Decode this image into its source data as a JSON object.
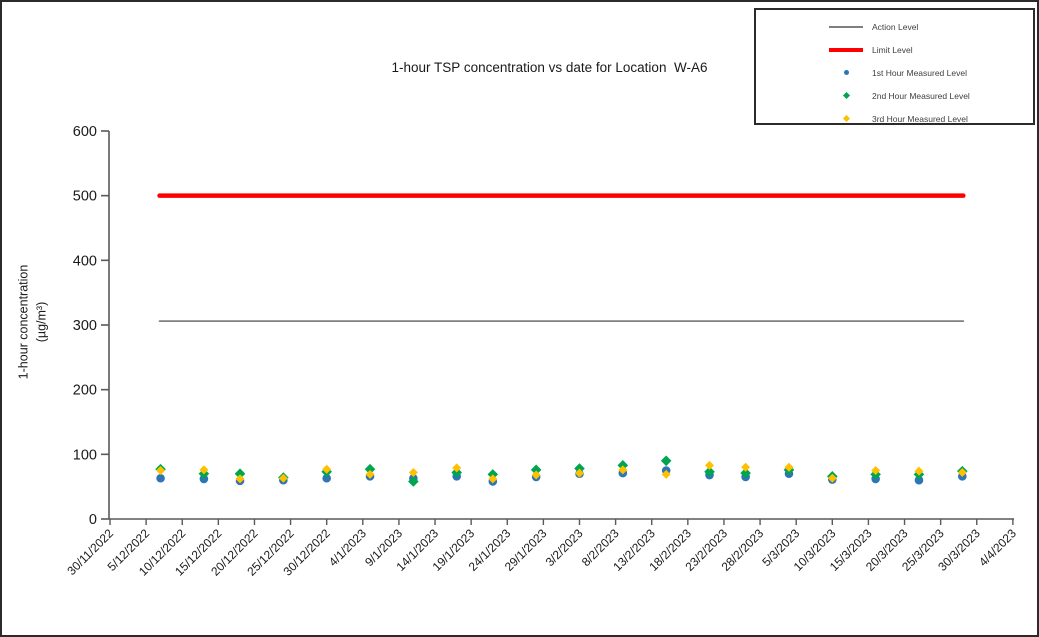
{
  "chart_data": {
    "type": "scatter",
    "title": "1-hour TSP concentration vs date for Location  W-A6",
    "ylabel_line1": "1-hour concentration",
    "ylabel_line2": "(µg/m³)",
    "xlabel": "",
    "ylim": [
      0,
      600
    ],
    "y_ticks": [
      0,
      100,
      200,
      300,
      400,
      500,
      600
    ],
    "x_tick_labels": [
      "30/11/2022",
      "5/12/2022",
      "10/12/2022",
      "15/12/2022",
      "20/12/2022",
      "25/12/2022",
      "30/12/2022",
      "4/1/2023",
      "9/1/2023",
      "14/1/2023",
      "19/1/2023",
      "24/1/2023",
      "29/1/2023",
      "3/2/2023",
      "8/2/2023",
      "13/2/2023",
      "18/2/2023",
      "23/2/2023",
      "28/2/2023",
      "5/3/2023",
      "10/3/2023",
      "15/3/2023",
      "20/3/2023",
      "25/3/2023",
      "30/3/2023",
      "4/4/2023"
    ],
    "x_dates": [
      "7/12/2022",
      "13/12/2022",
      "18/12/2022",
      "24/12/2022",
      "30/12/2022",
      "5/1/2023",
      "11/1/2023",
      "17/1/2023",
      "22/1/2023",
      "28/1/2023",
      "3/2/2023",
      "9/2/2023",
      "15/2/2023",
      "21/2/2023",
      "26/2/2023",
      "4/3/2023",
      "10/3/2023",
      "16/3/2023",
      "22/3/2023",
      "28/3/2023"
    ],
    "series": [
      {
        "name": "1st Hour Measured Level",
        "marker": "circle",
        "color": "#2E75B6",
        "values": [
          63,
          62,
          59,
          60,
          63,
          66,
          63,
          66,
          58,
          65,
          70,
          71,
          75,
          68,
          65,
          70,
          61,
          62,
          60,
          66
        ]
      },
      {
        "name": "2nd Hour Measured Level",
        "marker": "diamond",
        "color": "#00A550",
        "values": [
          77,
          70,
          70,
          64,
          73,
          77,
          58,
          72,
          69,
          76,
          78,
          83,
          90,
          73,
          71,
          76,
          66,
          69,
          69,
          74
        ]
      },
      {
        "name": "3rd Hour Measured Level",
        "marker": "diamond",
        "color": "#FFC000",
        "values": [
          75,
          76,
          62,
          63,
          77,
          69,
          72,
          79,
          62,
          68,
          71,
          76,
          69,
          83,
          80,
          80,
          63,
          75,
          74,
          72
        ]
      }
    ],
    "reference_lines": [
      {
        "name": "Action Level",
        "value": 306,
        "color": "#7F7F7F",
        "line_width": 1.8
      },
      {
        "name": "Limit Level",
        "value": 500,
        "color": "#FF0000",
        "line_width": 4.5
      }
    ],
    "legend_position": "top-right",
    "grid": false
  }
}
